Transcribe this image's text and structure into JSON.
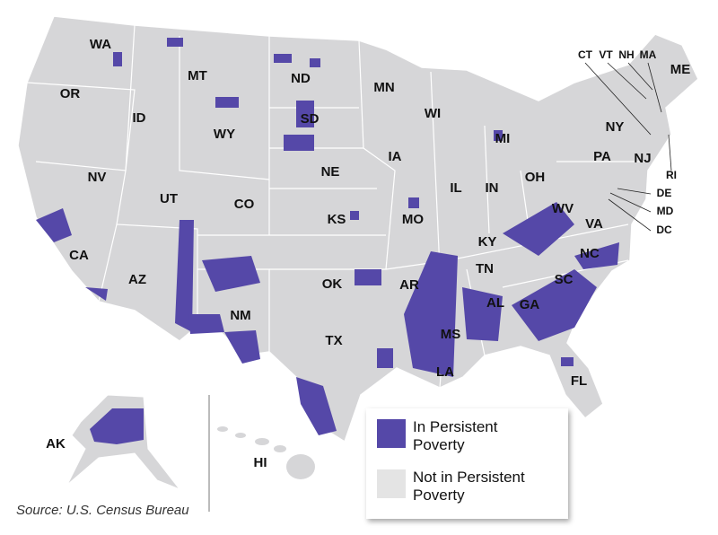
{
  "states": [
    "WA",
    "OR",
    "ID",
    "MT",
    "WY",
    "ND",
    "SD",
    "NE",
    "MN",
    "WI",
    "MI",
    "IA",
    "IL",
    "IN",
    "OH",
    "NV",
    "UT",
    "CO",
    "KS",
    "MO",
    "KY",
    "WV",
    "VA",
    "CA",
    "AZ",
    "NM",
    "OK",
    "AR",
    "TN",
    "NC",
    "SC",
    "AL",
    "GA",
    "MS",
    "TX",
    "LA",
    "FL",
    "PA",
    "NY",
    "NJ",
    "ME",
    "CT",
    "VT",
    "NH",
    "MA",
    "RI",
    "DE",
    "MD",
    "DC",
    "AK",
    "HI"
  ],
  "legend": [
    {
      "lines": [
        "In Persistent",
        "Poverty"
      ],
      "color": "#5548a8"
    },
    {
      "lines": [
        "Not in Persistent",
        "Poverty"
      ],
      "color": "#e4e4e4"
    }
  ],
  "source": "Source: U.S. Census Bureau"
}
